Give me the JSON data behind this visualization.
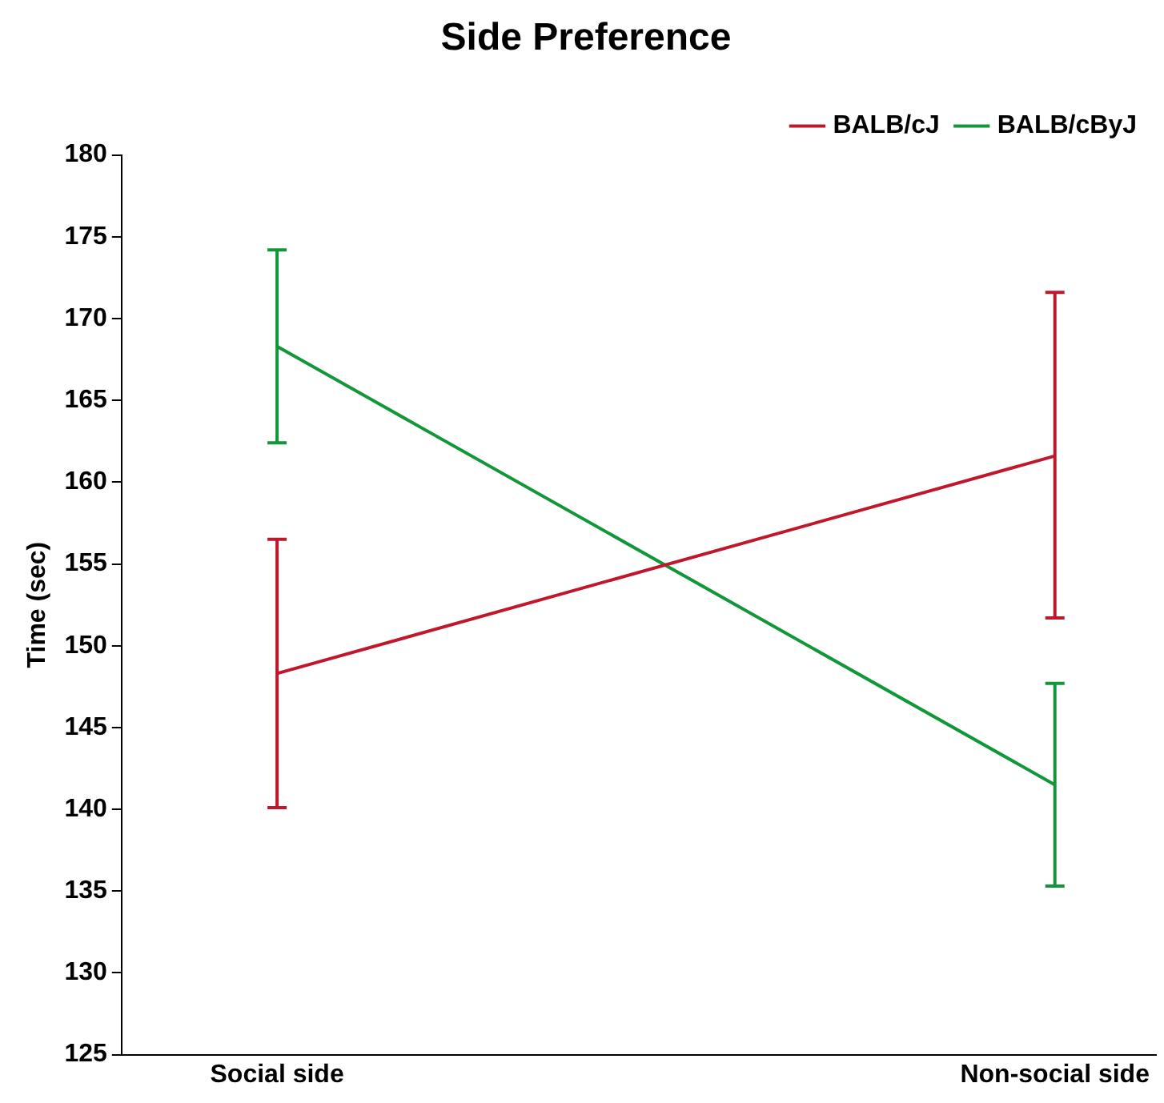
{
  "chart_data": {
    "type": "line",
    "title": "Side Preference",
    "ylabel": "Time (sec)",
    "categories": [
      "Social side",
      "Non-social side"
    ],
    "series": [
      {
        "name": "BALB/cJ",
        "color": "#c0182a",
        "values": [
          148.3,
          161.6
        ],
        "errors": [
          [
            140.1,
            156.5
          ],
          [
            151.7,
            171.6
          ]
        ]
      },
      {
        "name": "BALB/cByJ",
        "color": "#12963a",
        "values": [
          168.3,
          141.5
        ],
        "errors": [
          [
            162.4,
            174.2
          ],
          [
            135.3,
            147.7
          ]
        ]
      }
    ],
    "ylim": [
      125,
      180
    ],
    "yticks": [
      125,
      130,
      135,
      140,
      145,
      150,
      155,
      160,
      165,
      170,
      175,
      180
    ],
    "grid": false,
    "legend": "top right",
    "marker": "none",
    "line_style": "solid"
  }
}
